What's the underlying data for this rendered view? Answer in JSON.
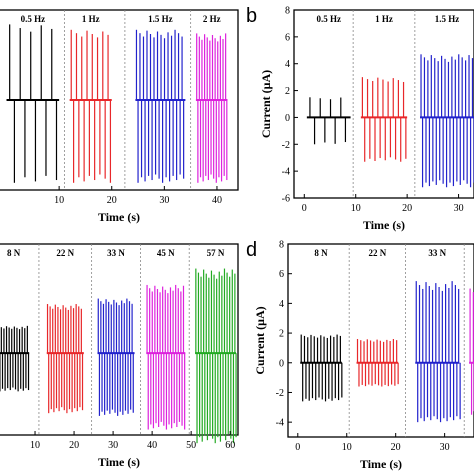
{
  "chart_data": [
    {
      "panel": "a",
      "type": "line",
      "show_letter": false,
      "xlabel": "Time (s)",
      "ylabel": "",
      "xlim": [
        -2,
        44
      ],
      "ylim": [
        -5,
        5
      ],
      "xticks": [
        10,
        20,
        30,
        40
      ],
      "yticks": [],
      "baseline": 0.0,
      "segments": [
        {
          "label": "0.5 Hz",
          "color": "#000000",
          "start": 0.0,
          "end": 10.0,
          "freq": 0.5,
          "up": 4.2,
          "down": -4.6
        },
        {
          "label": "1 Hz",
          "color": "#e8272a",
          "start": 12.0,
          "end": 20.0,
          "freq": 1.0,
          "up": 3.9,
          "down": -4.6
        },
        {
          "label": "1.5 Hz",
          "color": "#2222cc",
          "start": 24.5,
          "end": 34.0,
          "freq": 1.5,
          "up": 3.9,
          "down": -4.6
        },
        {
          "label": "2 Hz",
          "color": "#dd22dd",
          "start": 36.0,
          "end": 42.0,
          "freq": 2.0,
          "up": 3.7,
          "down": -4.6
        }
      ],
      "dividers": [
        11.0,
        22.5,
        35.0
      ]
    },
    {
      "panel": "b",
      "type": "line",
      "show_letter": true,
      "xlabel": "Time (s)",
      "ylabel": "Current (μA)",
      "xlim": [
        -2,
        33
      ],
      "ylim": [
        -6,
        8
      ],
      "xticks": [
        0,
        10,
        20,
        30
      ],
      "yticks": [
        -6,
        -4,
        -2,
        0,
        2,
        4,
        6,
        8
      ],
      "baseline": 0.0,
      "segments": [
        {
          "label": "0.5 Hz",
          "color": "#000000",
          "start": 0.5,
          "end": 9.0,
          "freq": 0.5,
          "up": 1.5,
          "down": -2.0
        },
        {
          "label": "1 Hz",
          "color": "#e8272a",
          "start": 11.0,
          "end": 20.0,
          "freq": 1.0,
          "up": 3.0,
          "down": -3.3
        },
        {
          "label": "1.5 Hz",
          "color": "#2222cc",
          "start": 22.5,
          "end": 33.0,
          "freq": 1.5,
          "up": 4.7,
          "down": -5.2
        }
      ],
      "dividers": [
        9.5,
        21.5
      ]
    },
    {
      "panel": "c",
      "type": "line",
      "show_letter": false,
      "xlabel": "Time (s)",
      "ylabel": "",
      "xlim": [
        0,
        62
      ],
      "ylim": [
        -6,
        8
      ],
      "xticks": [
        10,
        20,
        30,
        40,
        50,
        60
      ],
      "yticks": [],
      "baseline": 0.0,
      "segments": [
        {
          "label": "8 N",
          "color": "#000000",
          "start": 0.5,
          "end": 8.5,
          "freq": 1.5,
          "up": 2.0,
          "down": -2.8
        },
        {
          "label": "22 N",
          "color": "#e8272a",
          "start": 13.0,
          "end": 22.5,
          "freq": 1.5,
          "up": 3.6,
          "down": -4.4
        },
        {
          "label": "33 N",
          "color": "#2222cc",
          "start": 26.0,
          "end": 35.5,
          "freq": 1.5,
          "up": 4.0,
          "down": -4.6
        },
        {
          "label": "45 N",
          "color": "#dd22dd",
          "start": 38.5,
          "end": 48.5,
          "freq": 1.5,
          "up": 5.0,
          "down": -5.6
        },
        {
          "label": "57 N",
          "color": "#22aa22",
          "start": 51.0,
          "end": 61.5,
          "freq": 1.5,
          "up": 6.2,
          "down": -6.6
        }
      ],
      "dividers": [
        11.0,
        24.5,
        37.0,
        49.5
      ]
    },
    {
      "panel": "d",
      "type": "line",
      "show_letter": true,
      "xlabel": "Time (s)",
      "ylabel": "Current (μA)",
      "xlim": [
        -2,
        36
      ],
      "ylim": [
        -5,
        8
      ],
      "xticks": [
        0,
        10,
        20,
        30
      ],
      "yticks": [
        -4,
        -2,
        0,
        2,
        4,
        6,
        8
      ],
      "baseline": 0.0,
      "segments": [
        {
          "label": "8 N",
          "color": "#000000",
          "start": 0.5,
          "end": 9.0,
          "freq": 1.5,
          "up": 1.9,
          "down": -2.6
        },
        {
          "label": "22 N",
          "color": "#e8272a",
          "start": 12.0,
          "end": 20.5,
          "freq": 1.5,
          "up": 1.6,
          "down": -1.6
        },
        {
          "label": "33 N",
          "color": "#2222cc",
          "start": 24.0,
          "end": 33.0,
          "freq": 1.5,
          "up": 5.5,
          "down": -4.0
        },
        {
          "label": "",
          "color": "#dd22dd",
          "start": 35.0,
          "end": 36.0,
          "freq": 1.5,
          "up": 5.0,
          "down": -3.5
        }
      ],
      "dividers": [
        10.5,
        22.0,
        34.0
      ]
    }
  ]
}
